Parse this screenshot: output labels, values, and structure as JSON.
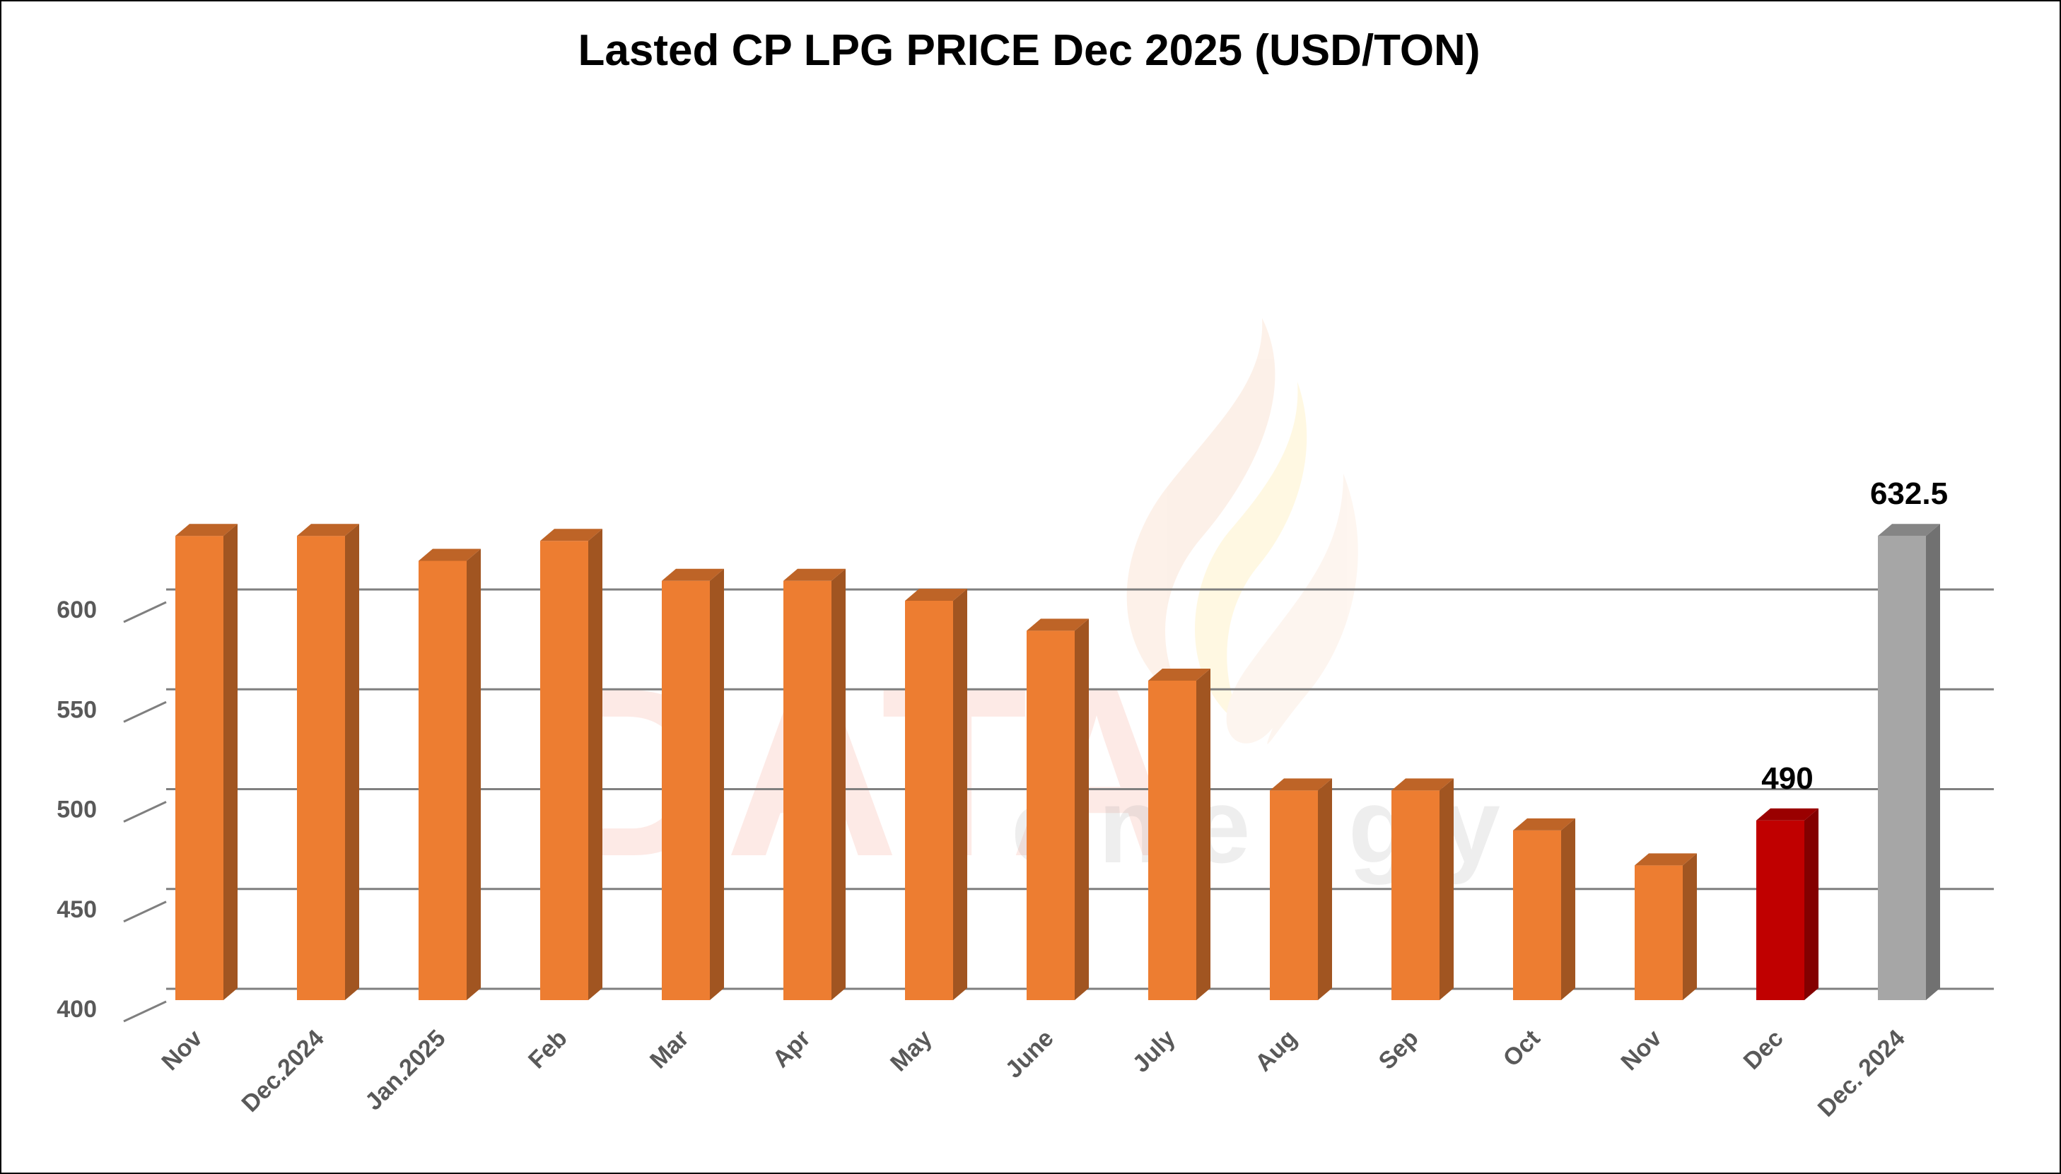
{
  "chart_data": {
    "type": "bar",
    "title": "Lasted CP LPG PRICE Dec 2025 (USD/TON)",
    "xlabel": "",
    "ylabel": "",
    "ylim": [
      400,
      632.5
    ],
    "yticks": [
      400,
      450,
      500,
      550,
      600
    ],
    "grid": true,
    "categories": [
      "Nov",
      "Dec.2024",
      "Jan.2025",
      "Feb",
      "Mar",
      "Apr",
      "May",
      "June",
      "July",
      "Aug",
      "Sep",
      "Oct",
      "Nov",
      "Dec",
      "Dec. 2024"
    ],
    "values": [
      632.5,
      632.5,
      620,
      630,
      610,
      610,
      600,
      585,
      560,
      505,
      505,
      485,
      467.5,
      490,
      632.5
    ],
    "bar_colors": [
      "#ed7d31",
      "#ed7d31",
      "#ed7d31",
      "#ed7d31",
      "#ed7d31",
      "#ed7d31",
      "#ed7d31",
      "#ed7d31",
      "#ed7d31",
      "#ed7d31",
      "#ed7d31",
      "#ed7d31",
      "#ed7d31",
      "#c00000",
      "#a6a6a6"
    ],
    "data_labels": [
      {
        "index": 13,
        "text": "490"
      },
      {
        "index": 14,
        "text": "632.5"
      }
    ]
  },
  "watermark": {
    "main": "DATA",
    "sub": "energy"
  },
  "colors": {
    "primary_bar": "#ed7d31",
    "highlight_bar": "#c00000",
    "compare_bar": "#a6a6a6",
    "gridline": "#7f7f7f",
    "tick_text": "#595959"
  }
}
